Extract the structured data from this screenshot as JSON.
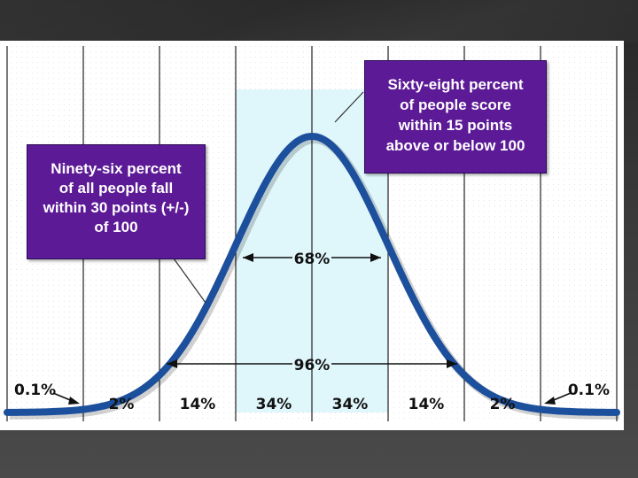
{
  "chart_data": {
    "type": "area",
    "curve": "normal-distribution",
    "mean": 100,
    "sd": 15,
    "x_range": [
      40,
      160
    ],
    "bands": [
      {
        "from": 40,
        "to": 55,
        "label": "0.1%"
      },
      {
        "from": 55,
        "to": 70,
        "label": "2%"
      },
      {
        "from": 70,
        "to": 85,
        "label": "14%"
      },
      {
        "from": 85,
        "to": 100,
        "label": "34%"
      },
      {
        "from": 100,
        "to": 115,
        "label": "34%"
      },
      {
        "from": 115,
        "to": 130,
        "label": "14%"
      },
      {
        "from": 130,
        "to": 145,
        "label": "2%"
      },
      {
        "from": 145,
        "to": 160,
        "label": "0.1%"
      }
    ],
    "ranges": [
      {
        "from": 85,
        "to": 115,
        "label": "68%"
      },
      {
        "from": 70,
        "to": 130,
        "label": "96%"
      }
    ],
    "highlight": [
      85,
      115
    ],
    "grid": true
  },
  "callouts": {
    "left": "Ninety-six percent\nof all people fall\nwithin 30 points (+/-)\nof 100",
    "right": "Sixty-eight percent\nof people score\nwithin 15 points\nabove or below 100"
  },
  "colors": {
    "curve": "#1c4f9c",
    "highlight": "#dff6fb",
    "callout_bg": "#5c1a96",
    "grid": "#e3e3e3"
  }
}
